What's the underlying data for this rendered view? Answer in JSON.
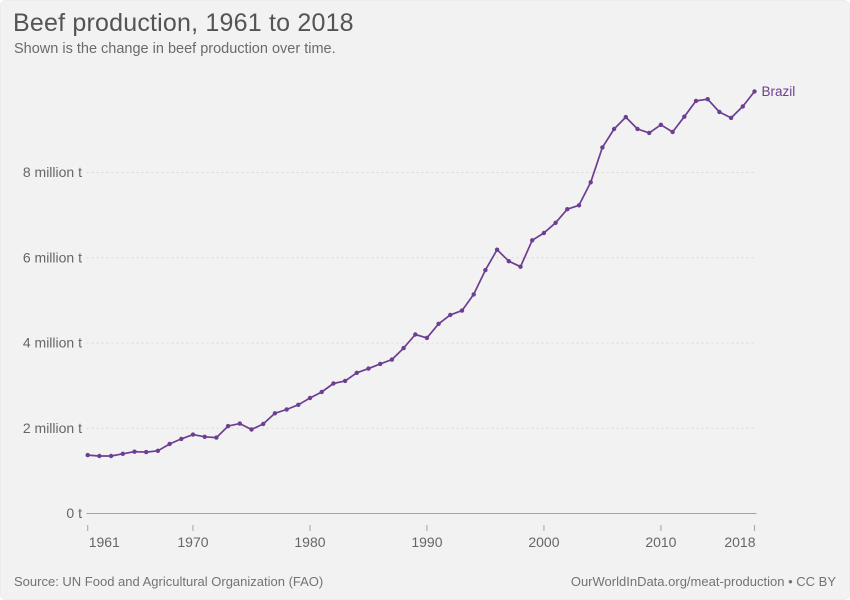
{
  "header": {
    "title": "Beef production, 1961 to 2018",
    "subtitle": "Shown is the change in beef production over time."
  },
  "chart_data": {
    "type": "line",
    "title": "Beef production, 1961 to 2018",
    "unit": "million tonnes",
    "xlabel": "",
    "ylabel": "",
    "xlim": [
      1961,
      2018
    ],
    "ylim": [
      0,
      10
    ],
    "grid": "horizontal-dashed",
    "legend_position": "end-of-line-label",
    "x_ticks": [
      1961,
      1970,
      1980,
      1990,
      2000,
      2010,
      2018
    ],
    "y_ticks": [
      0,
      2,
      4,
      6,
      8
    ],
    "y_tick_labels": [
      "0 t",
      "2 million t",
      "4 million t",
      "6 million t",
      "8 million t"
    ],
    "series": [
      {
        "name": "Brazil",
        "color": "#6d3e91",
        "x": [
          1961,
          1962,
          1963,
          1964,
          1965,
          1966,
          1967,
          1968,
          1969,
          1970,
          1971,
          1972,
          1973,
          1974,
          1975,
          1976,
          1977,
          1978,
          1979,
          1980,
          1981,
          1982,
          1983,
          1984,
          1985,
          1986,
          1987,
          1988,
          1989,
          1990,
          1991,
          1992,
          1993,
          1994,
          1995,
          1996,
          1997,
          1998,
          1999,
          2000,
          2001,
          2002,
          2003,
          2004,
          2005,
          2006,
          2007,
          2008,
          2009,
          2010,
          2011,
          2012,
          2013,
          2014,
          2015,
          2016,
          2017,
          2018
        ],
        "values": [
          1.37,
          1.35,
          1.35,
          1.4,
          1.45,
          1.44,
          1.47,
          1.63,
          1.75,
          1.85,
          1.8,
          1.78,
          2.05,
          2.11,
          1.97,
          2.1,
          2.35,
          2.44,
          2.55,
          2.71,
          2.85,
          3.05,
          3.11,
          3.3,
          3.4,
          3.51,
          3.61,
          3.88,
          4.2,
          4.12,
          4.45,
          4.66,
          4.76,
          5.14,
          5.71,
          6.19,
          5.92,
          5.79,
          6.41,
          6.58,
          6.82,
          7.14,
          7.23,
          7.77,
          8.59,
          9.02,
          9.3,
          9.02,
          8.93,
          9.12,
          8.95,
          9.31,
          9.68,
          9.72,
          9.42,
          9.28,
          9.55,
          9.9
        ]
      }
    ]
  },
  "footer": {
    "source": "Source: UN Food and Agricultural Organization (FAO)",
    "attribution": "OurWorldInData.org/meat-production • CC BY"
  }
}
